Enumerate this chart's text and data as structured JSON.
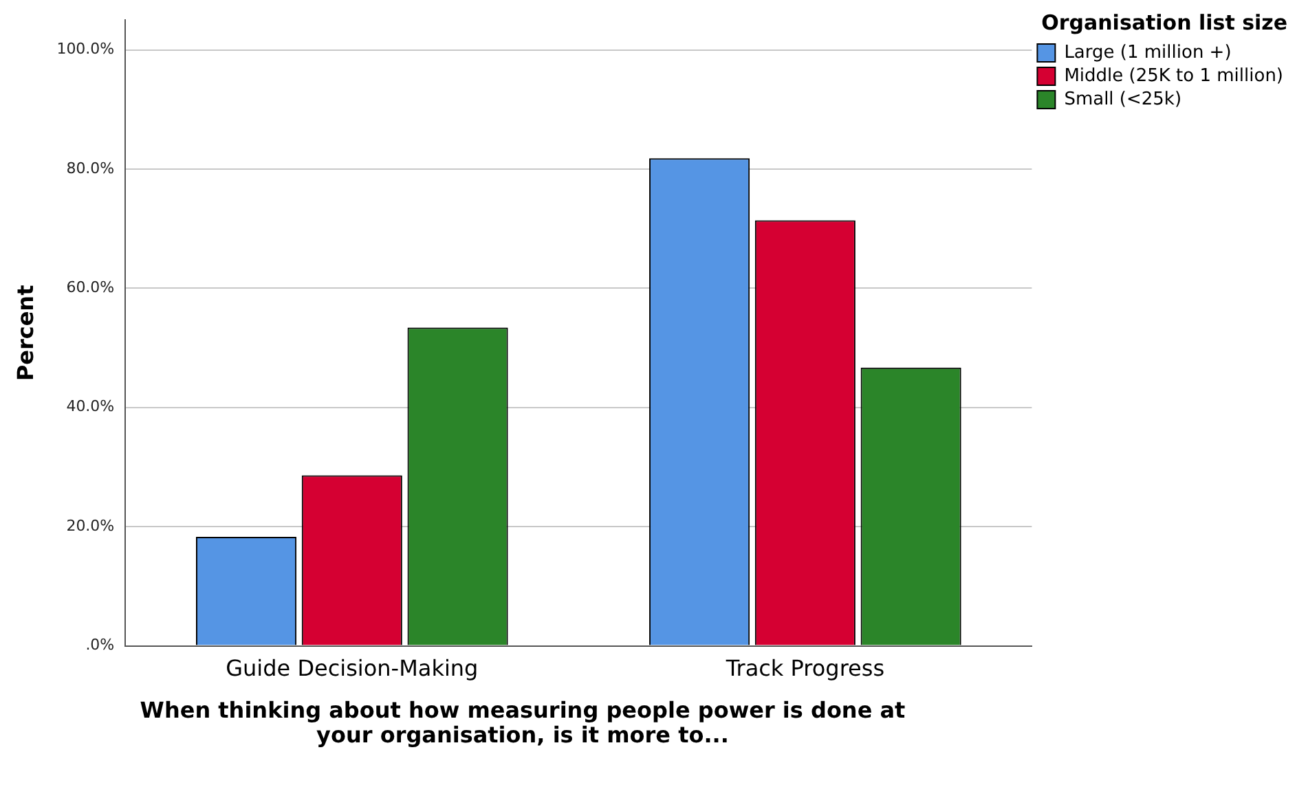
{
  "chart_data": {
    "type": "bar",
    "xlabel": "When thinking about how measuring people power is done at your organisation, is it more to...",
    "ylabel": "Percent",
    "legend_title": "Organisation list size",
    "categories": [
      "Guide Decision-Making",
      "Track Progress"
    ],
    "series": [
      {
        "name": "Large (1 million +)",
        "color": "#5595e4",
        "values": [
          18.3,
          81.8
        ]
      },
      {
        "name": "Middle (25K to 1 million)",
        "color": "#d50032",
        "values": [
          28.6,
          71.4
        ]
      },
      {
        "name": "Small (<25k)",
        "color": "#2b8529",
        "values": [
          53.4,
          46.7
        ]
      }
    ],
    "ylim": [
      0,
      105
    ],
    "yticks": [
      {
        "value": 0,
        "label": ".0%"
      },
      {
        "value": 20,
        "label": "20.0%"
      },
      {
        "value": 40,
        "label": "40.0%"
      },
      {
        "value": 60,
        "label": "60.0%"
      },
      {
        "value": 80,
        "label": "80.0%"
      },
      {
        "value": 100,
        "label": "100.0%"
      }
    ],
    "grid": "y",
    "legend": "top right"
  }
}
